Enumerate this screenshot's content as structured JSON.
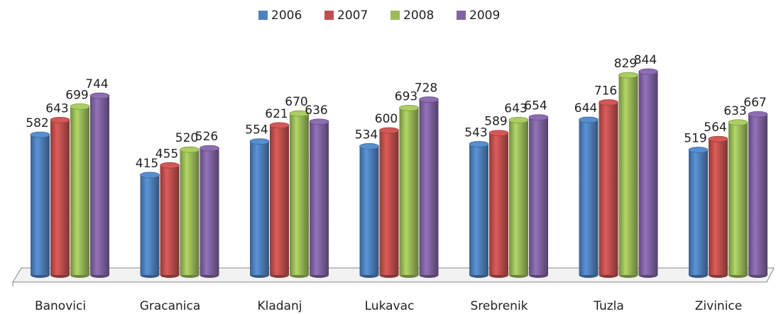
{
  "chart_data": {
    "type": "bar",
    "categories": [
      "Banovici",
      "Gracanica",
      "Kladanj",
      "Lukavac",
      "Srebrenik",
      "Tuzla",
      "Zivinice"
    ],
    "series": [
      {
        "name": "2006",
        "color": "#4f81bd",
        "values": [
          582,
          415,
          554,
          534,
          543,
          644,
          519
        ]
      },
      {
        "name": "2007",
        "color": "#c0504d",
        "values": [
          643,
          455,
          621,
          600,
          589,
          716,
          564
        ]
      },
      {
        "name": "2008",
        "color": "#9bbb59",
        "values": [
          699,
          520,
          670,
          693,
          643,
          829,
          633
        ]
      },
      {
        "name": "2009",
        "color": "#8064a2",
        "values": [
          744,
          526,
          636,
          728,
          654,
          844,
          667
        ]
      }
    ],
    "legend": "top"
  }
}
